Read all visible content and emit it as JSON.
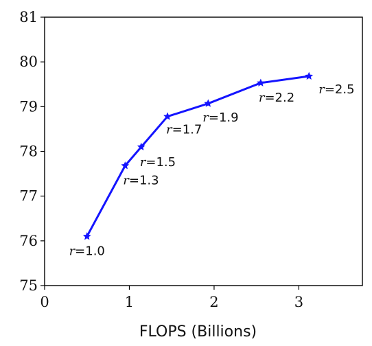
{
  "chart_data": {
    "type": "line",
    "title": "",
    "xlabel": "FLOPS (Billions)",
    "ylabel": "",
    "xlim": [
      0,
      3.75
    ],
    "ylim": [
      75,
      81
    ],
    "xticks": [
      0,
      1,
      2,
      3
    ],
    "yticks": [
      75,
      76,
      77,
      78,
      79,
      80,
      81
    ],
    "grid": false,
    "color": "#1414ff",
    "marker": "star",
    "series": [
      {
        "x": [
          0.5,
          0.95,
          1.14,
          1.45,
          1.93,
          2.55,
          3.12
        ],
        "y": [
          76.1,
          77.68,
          78.1,
          78.78,
          79.07,
          79.53,
          79.68
        ],
        "labels": [
          "r=1.0",
          "r=1.3",
          "r=1.5",
          "r=1.7",
          "r=1.9",
          "r=2.2",
          "r=2.5"
        ]
      }
    ]
  }
}
